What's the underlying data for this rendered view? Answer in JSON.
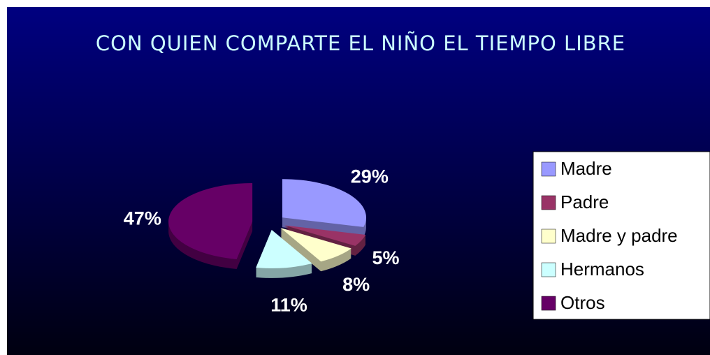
{
  "chart_data": {
    "type": "pie3d",
    "title": "CON QUIEN COMPARTE EL NIÑO EL TIEMPO LIBRE",
    "categories": [
      "Madre",
      "Padre",
      "Madre y padre",
      "Hermanos",
      "Otros"
    ],
    "values": [
      29,
      5,
      8,
      11,
      47
    ],
    "value_labels": [
      "29%",
      "5%",
      "8%",
      "11%",
      "47%"
    ],
    "colors": [
      "#9999ff",
      "#993366",
      "#ffffcc",
      "#ccffff",
      "#660066"
    ],
    "legend": "right"
  }
}
